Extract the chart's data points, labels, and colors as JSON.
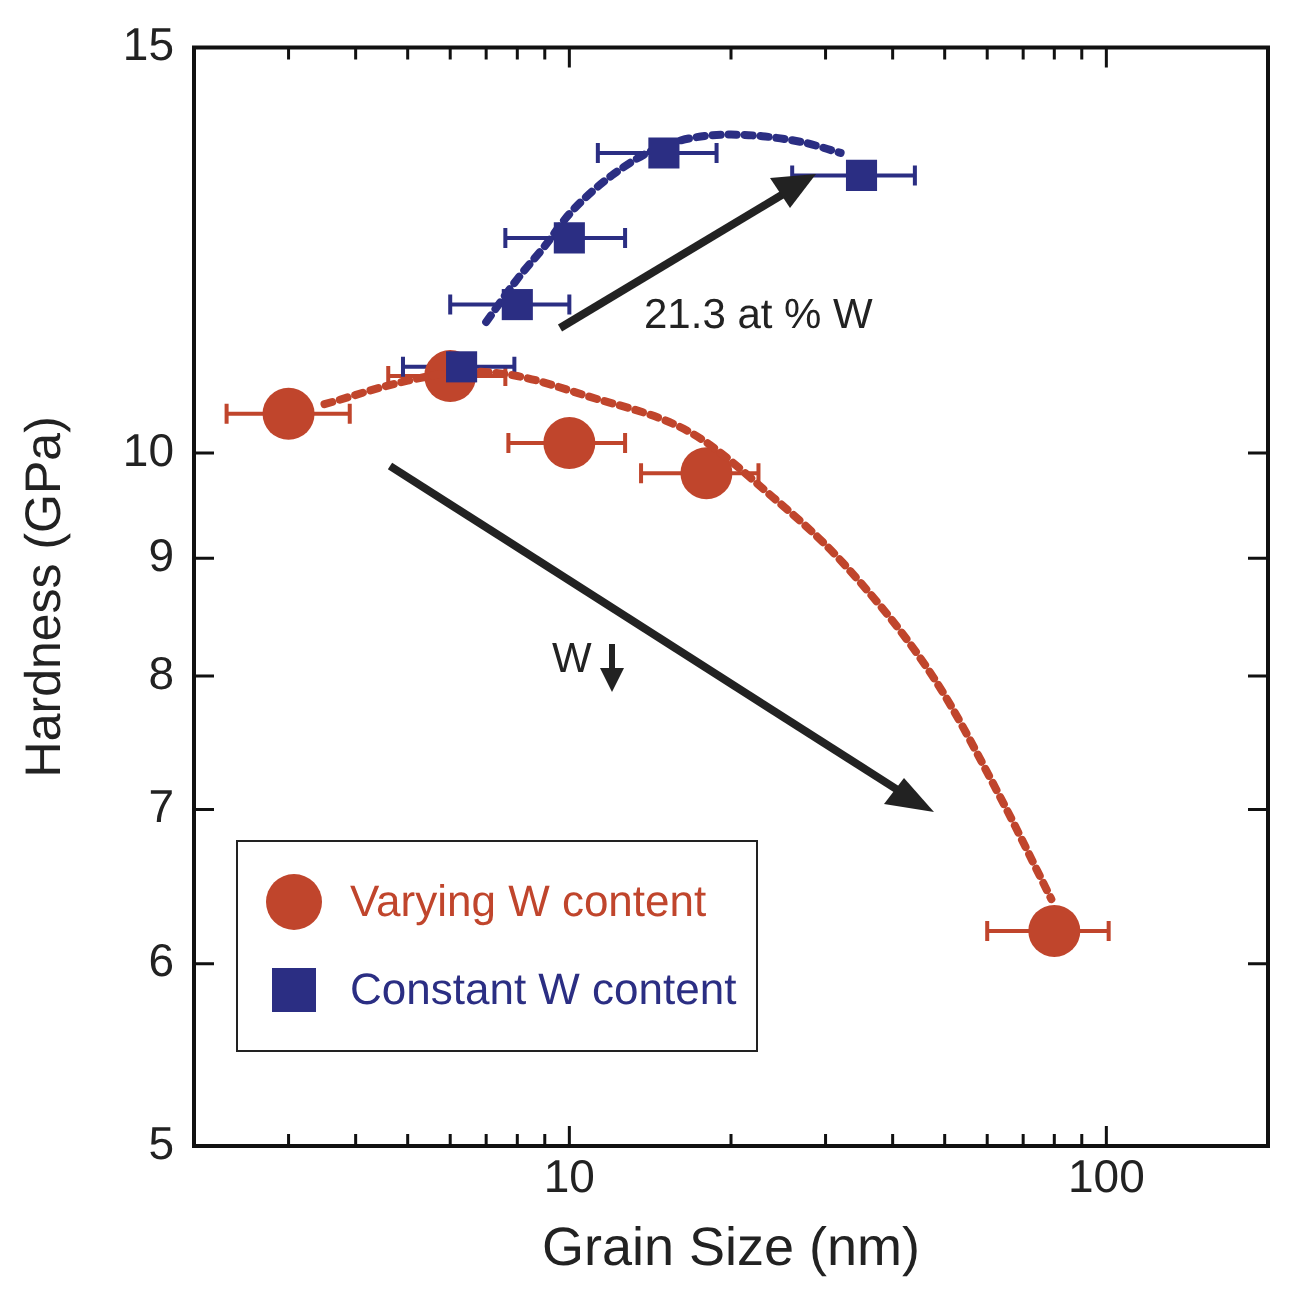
{
  "chart_data": {
    "type": "scatter",
    "xlabel": "Grain Size (nm)",
    "ylabel": "Hardness (GPa)",
    "log": "xy",
    "xlim": [
      2,
      200
    ],
    "ylim": [
      5,
      15
    ],
    "xticks": [
      {
        "value": 2,
        "label": null
      },
      {
        "value": 3,
        "label": null
      },
      {
        "value": 4,
        "label": null
      },
      {
        "value": 5,
        "label": null
      },
      {
        "value": 6,
        "label": null
      },
      {
        "value": 7,
        "label": null
      },
      {
        "value": 8,
        "label": null
      },
      {
        "value": 9,
        "label": null
      },
      10,
      {
        "value": 20,
        "label": null
      },
      {
        "value": 30,
        "label": null
      },
      {
        "value": 40,
        "label": null
      },
      {
        "value": 50,
        "label": null
      },
      {
        "value": 60,
        "label": null
      },
      {
        "value": 70,
        "label": null
      },
      {
        "value": 80,
        "label": null
      },
      {
        "value": 90,
        "label": null
      },
      100,
      {
        "value": 200,
        "label": null
      }
    ],
    "yticks": [
      5,
      6,
      7,
      8,
      9,
      10,
      15
    ],
    "grid": false,
    "legend": "bottom left",
    "annotations": [
      "21.3 at % W",
      "W"
    ],
    "series": [
      {
        "type": "line",
        "color": "#c0452c",
        "line_style": "dotted",
        "marker": "none",
        "x": [
          3.5,
          5,
          6.5,
          8,
          10.6,
          16.9,
          23.9,
          32.3,
          47.8,
          63.2,
          79
        ],
        "values": [
          10.5,
          10.75,
          10.85,
          10.8,
          10.6,
          10.2,
          9.57,
          8.96,
          7.98,
          7.1,
          6.4
        ]
      },
      {
        "type": "line",
        "color": "#2b2e83",
        "line_style": "dotted",
        "marker": "none",
        "x": [
          7,
          8,
          9,
          10,
          12,
          15,
          20,
          27,
          32
        ],
        "values": [
          11.4,
          11.9,
          12.3,
          12.7,
          13.2,
          13.6,
          13.75,
          13.65,
          13.5
        ]
      },
      {
        "name": "Varying W content",
        "color": "#c0452c",
        "marker": "circle",
        "x": [
          3,
          6,
          10,
          18,
          80
        ],
        "values": [
          10.4,
          10.8,
          10.1,
          9.8,
          6.2
        ],
        "xerrors": [
          [
            2.3,
            3.9
          ],
          [
            4.6,
            7.6
          ],
          [
            7.7,
            12.7
          ],
          [
            13.6,
            22.5
          ],
          [
            60,
            101
          ]
        ]
      },
      {
        "name": "Constant W content",
        "color": "#2b2e83",
        "marker": "square",
        "x": [
          6.3,
          8,
          10,
          15,
          35
        ],
        "values": [
          10.9,
          11.6,
          12.4,
          13.5,
          13.2
        ],
        "xerrors": [
          [
            4.9,
            7.9
          ],
          [
            6,
            10
          ],
          [
            7.6,
            12.7
          ],
          [
            11.3,
            18.8
          ],
          [
            26,
            44
          ]
        ]
      }
    ]
  }
}
